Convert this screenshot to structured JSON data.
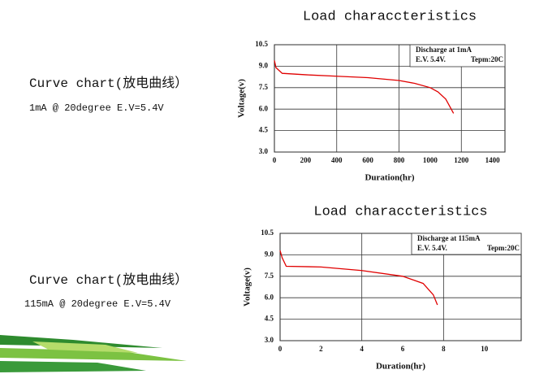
{
  "captions": [
    {
      "title": "Curve chart(放电曲线）",
      "detail": "1mA @ 20degree E.V=5.4V"
    },
    {
      "title": "Curve chart(放电曲线）",
      "detail": "115mA @ 20degree  E.V=5.4V"
    }
  ],
  "chart_data": [
    {
      "type": "line",
      "title": "Load characcteristics",
      "x_label": "Duration(hr)",
      "y_label": "Voltage(v)",
      "annotations": [
        "Discharge at 1mA",
        "E.V. 5.4V.",
        "Tepm:20C"
      ],
      "x": [
        0,
        10,
        50,
        200,
        400,
        600,
        800,
        900,
        1000,
        1050,
        1100,
        1150
      ],
      "values": [
        9.4,
        8.9,
        8.5,
        8.4,
        8.3,
        8.2,
        8.0,
        7.8,
        7.5,
        7.2,
        6.7,
        5.7
      ],
      "color": "#e00000",
      "xlim": [
        0,
        1480
      ],
      "xticks": [
        0,
        200,
        400,
        600,
        800,
        1000,
        1200,
        1400
      ],
      "ylim": [
        3,
        10.5
      ],
      "yticks": [
        {
          "value": 3,
          "label": "3.0"
        },
        4.5,
        {
          "value": 6,
          "label": "6.0"
        },
        7.5,
        {
          "value": 9,
          "label": "9.0"
        },
        10.5
      ],
      "grid": true
    },
    {
      "type": "line",
      "title": "Load characcteristics",
      "x_label": "Duration(hr)",
      "y_label": "Voltage(v)",
      "annotations": [
        "Discharge at 115mA",
        "E.V. 5.4V.",
        "Tepm:20C"
      ],
      "x": [
        0,
        0.1,
        0.3,
        2,
        4,
        6,
        7,
        7.5,
        7.7
      ],
      "values": [
        9.3,
        8.8,
        8.2,
        8.15,
        7.9,
        7.5,
        7.0,
        6.2,
        5.5
      ],
      "color": "#e00000",
      "xlim": [
        0,
        11.8
      ],
      "xticks": [
        0,
        2,
        4,
        6,
        8,
        10
      ],
      "ylim": [
        3,
        10.5
      ],
      "yticks": [
        {
          "value": 3,
          "label": "3.0"
        },
        4.5,
        {
          "value": 6,
          "label": "6.0"
        },
        7.5,
        {
          "value": 9,
          "label": "9.0"
        },
        10.5
      ],
      "grid": true
    }
  ]
}
